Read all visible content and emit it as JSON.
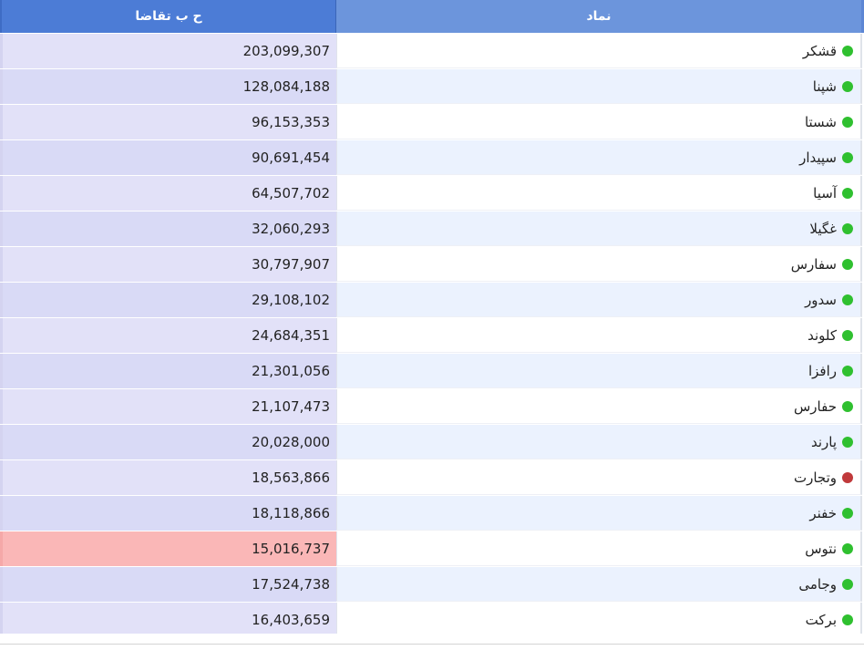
{
  "table": {
    "headers": {
      "demand": "ح ب تقاضا",
      "symbol": "نماد"
    },
    "colors": {
      "up": "#2fc02f",
      "down": "#c0393b",
      "highlight": "#fab7b7"
    },
    "rows": [
      {
        "symbol": "قشکر",
        "demand": "203,099,307",
        "status": "up",
        "highlight": false
      },
      {
        "symbol": "شپنا",
        "demand": "128,084,188",
        "status": "up",
        "highlight": false
      },
      {
        "symbol": "شستا",
        "demand": "96,153,353",
        "status": "up",
        "highlight": false
      },
      {
        "symbol": "سپیدار",
        "demand": "90,691,454",
        "status": "up",
        "highlight": false
      },
      {
        "symbol": "آسیا",
        "demand": "64,507,702",
        "status": "up",
        "highlight": false
      },
      {
        "symbol": "غگیلا",
        "demand": "32,060,293",
        "status": "up",
        "highlight": false
      },
      {
        "symbol": "سفارس",
        "demand": "30,797,907",
        "status": "up",
        "highlight": false
      },
      {
        "symbol": "سدور",
        "demand": "29,108,102",
        "status": "up",
        "highlight": false
      },
      {
        "symbol": "کلوند",
        "demand": "24,684,351",
        "status": "up",
        "highlight": false
      },
      {
        "symbol": "رافزا",
        "demand": "21,301,056",
        "status": "up",
        "highlight": false
      },
      {
        "symbol": "حفارس",
        "demand": "21,107,473",
        "status": "up",
        "highlight": false
      },
      {
        "symbol": "پارند",
        "demand": "20,028,000",
        "status": "up",
        "highlight": false
      },
      {
        "symbol": "وتجارت",
        "demand": "18,563,866",
        "status": "down",
        "highlight": false
      },
      {
        "symbol": "خفنر",
        "demand": "18,118,866",
        "status": "up",
        "highlight": false
      },
      {
        "symbol": "نتوس",
        "demand": "15,016,737",
        "status": "up",
        "highlight": true
      },
      {
        "symbol": "وجامی",
        "demand": "17,524,738",
        "status": "up",
        "highlight": false
      },
      {
        "symbol": "برکت",
        "demand": "16,403,659",
        "status": "up",
        "highlight": false
      }
    ]
  }
}
